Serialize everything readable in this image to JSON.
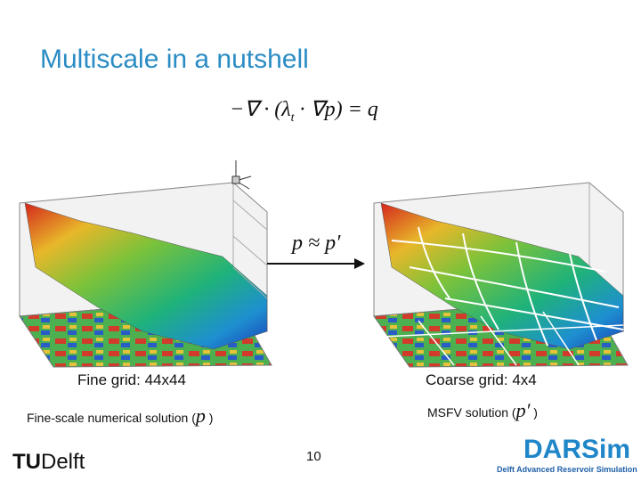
{
  "title": "Multiscale in a nutshell",
  "equation": {
    "lhs": "−∇ · (λ",
    "sub": "t",
    "rhs": " · ∇p) = q"
  },
  "approx": "p ≈ p′",
  "left_caption": "Fine grid: 44x44",
  "right_caption": "Coarse grid: 4x4",
  "left_note": {
    "text": "Fine-scale numerical solution (",
    "symbol": "p",
    "close": " )"
  },
  "right_note": {
    "text": "MSFV solution (",
    "symbol": "p′",
    "close": " )"
  },
  "page_number": "10",
  "logo_left": {
    "mark": "TU",
    "text": "Delft"
  },
  "logo_right": {
    "name": "DARSim",
    "subtitle": "Delft Advanced Reservoir Simulation"
  }
}
